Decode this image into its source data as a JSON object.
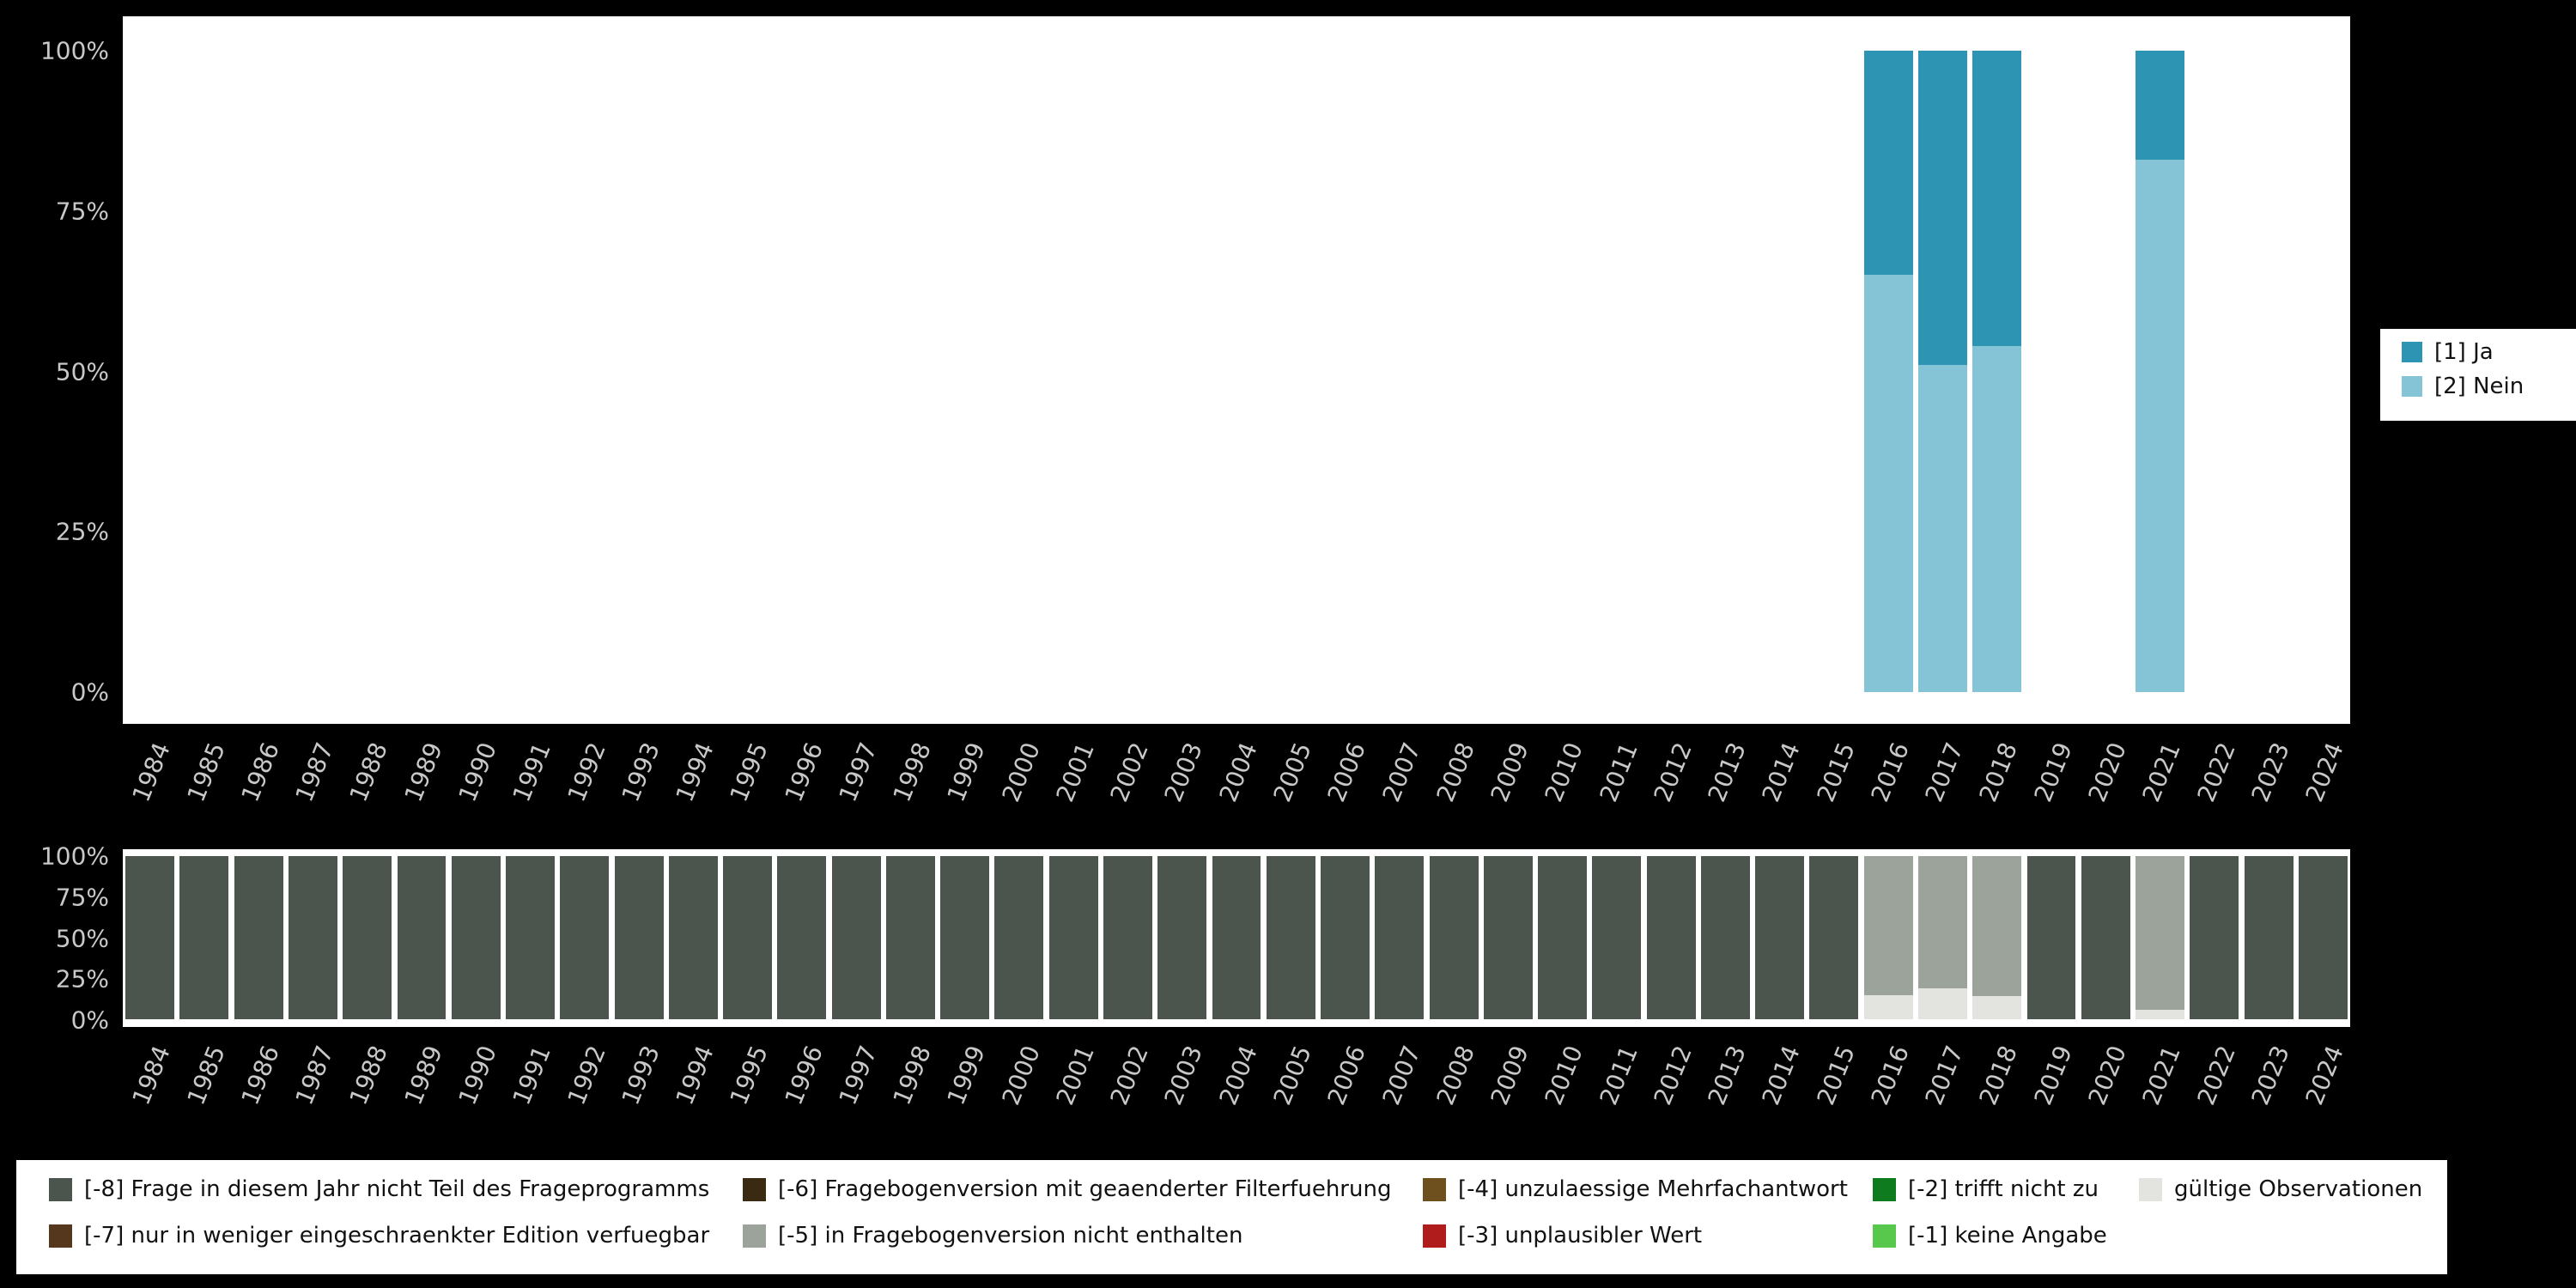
{
  "colors": {
    "background": "#000000",
    "panel": "#ffffff",
    "axis_text": "#c8c8c8",
    "legend_text": "#111111",
    "ja": "#2d94b3",
    "nein": "#85c3d6",
    "m8": "#4c544e",
    "m7": "#54371c",
    "m6": "#3b2a12",
    "m5": "#9ba39b",
    "m4": "#6e4f1e",
    "m3": "#b01c1c",
    "m2": "#0f7b1f",
    "m1": "#57c84b",
    "valid": "#e3e3e0"
  },
  "y_ticks": [
    "100%",
    "75%",
    "50%",
    "25%",
    "0%"
  ],
  "years": [
    "1984",
    "1985",
    "1986",
    "1987",
    "1988",
    "1989",
    "1990",
    "1991",
    "1992",
    "1993",
    "1994",
    "1995",
    "1996",
    "1997",
    "1998",
    "1999",
    "2000",
    "2001",
    "2002",
    "2003",
    "2004",
    "2005",
    "2006",
    "2007",
    "2008",
    "2009",
    "2010",
    "2011",
    "2012",
    "2013",
    "2014",
    "2015",
    "2016",
    "2017",
    "2018",
    "2019",
    "2020",
    "2021",
    "2022",
    "2023",
    "2024"
  ],
  "legend_top": {
    "entries": [
      {
        "label": "[1] Ja",
        "color_key": "ja"
      },
      {
        "label": "[2] Nein",
        "color_key": "nein"
      }
    ]
  },
  "legend_bottom": {
    "rows": [
      [
        {
          "label": "[-8] Frage in diesem Jahr nicht Teil des Frageprogramms",
          "color_key": "m8"
        },
        {
          "label": "[-6] Fragebogenversion mit geaenderter Filterfuehrung",
          "color_key": "m6"
        },
        {
          "label": "[-4] unzulaessige Mehrfachantwort",
          "color_key": "m4"
        },
        {
          "label": "[-2] trifft nicht zu",
          "color_key": "m2"
        },
        {
          "label": "gültige Observationen",
          "color_key": "valid"
        }
      ],
      [
        {
          "label": "[-7] nur in weniger eingeschraenkter Edition verfuegbar",
          "color_key": "m7"
        },
        {
          "label": "[-5] in Fragebogenversion nicht enthalten",
          "color_key": "m5"
        },
        {
          "label": "[-3] unplausibler Wert",
          "color_key": "m3"
        },
        {
          "label": "[-1] keine Angabe",
          "color_key": "m1"
        }
      ]
    ]
  },
  "chart_data": [
    {
      "type": "bar",
      "stacked": true,
      "stack_order": "bottom-to-top",
      "title": "",
      "xlabel": "",
      "ylabel": "",
      "ylim": [
        0,
        100
      ],
      "y_unit": "percent",
      "grid": false,
      "legend_position": "right",
      "categories": [
        "1984",
        "1985",
        "1986",
        "1987",
        "1988",
        "1989",
        "1990",
        "1991",
        "1992",
        "1993",
        "1994",
        "1995",
        "1996",
        "1997",
        "1998",
        "1999",
        "2000",
        "2001",
        "2002",
        "2003",
        "2004",
        "2005",
        "2006",
        "2007",
        "2008",
        "2009",
        "2010",
        "2011",
        "2012",
        "2013",
        "2014",
        "2015",
        "2016",
        "2017",
        "2018",
        "2019",
        "2020",
        "2021",
        "2022",
        "2023",
        "2024"
      ],
      "series": [
        {
          "name": "[2] Nein",
          "color_key": "nein",
          "values": [
            0,
            0,
            0,
            0,
            0,
            0,
            0,
            0,
            0,
            0,
            0,
            0,
            0,
            0,
            0,
            0,
            0,
            0,
            0,
            0,
            0,
            0,
            0,
            0,
            0,
            0,
            0,
            0,
            0,
            0,
            0,
            0,
            65,
            51,
            54,
            0,
            0,
            83,
            0,
            0,
            0
          ]
        },
        {
          "name": "[1] Ja",
          "color_key": "ja",
          "values": [
            0,
            0,
            0,
            0,
            0,
            0,
            0,
            0,
            0,
            0,
            0,
            0,
            0,
            0,
            0,
            0,
            0,
            0,
            0,
            0,
            0,
            0,
            0,
            0,
            0,
            0,
            0,
            0,
            0,
            0,
            0,
            0,
            35,
            49,
            46,
            0,
            0,
            17,
            0,
            0,
            0
          ]
        }
      ]
    },
    {
      "type": "bar",
      "stacked": true,
      "stack_order": "bottom-to-top",
      "title": "",
      "xlabel": "",
      "ylabel": "",
      "ylim": [
        0,
        100
      ],
      "y_unit": "percent",
      "grid": false,
      "legend_position": "bottom",
      "categories": [
        "1984",
        "1985",
        "1986",
        "1987",
        "1988",
        "1989",
        "1990",
        "1991",
        "1992",
        "1993",
        "1994",
        "1995",
        "1996",
        "1997",
        "1998",
        "1999",
        "2000",
        "2001",
        "2002",
        "2003",
        "2004",
        "2005",
        "2006",
        "2007",
        "2008",
        "2009",
        "2010",
        "2011",
        "2012",
        "2013",
        "2014",
        "2015",
        "2016",
        "2017",
        "2018",
        "2019",
        "2020",
        "2021",
        "2022",
        "2023",
        "2024"
      ],
      "series": [
        {
          "name": "gültige Observationen",
          "color_key": "valid",
          "values": [
            0,
            0,
            0,
            0,
            0,
            0,
            0,
            0,
            0,
            0,
            0,
            0,
            0,
            0,
            0,
            0,
            0,
            0,
            0,
            0,
            0,
            0,
            0,
            0,
            0,
            0,
            0,
            0,
            0,
            0,
            0,
            0,
            15,
            19,
            14,
            0,
            0,
            6,
            0,
            0,
            0
          ]
        },
        {
          "name": "[-5] in Fragebogenversion nicht enthalten",
          "color_key": "m5",
          "values": [
            0,
            0,
            0,
            0,
            0,
            0,
            0,
            0,
            0,
            0,
            0,
            0,
            0,
            0,
            0,
            0,
            0,
            0,
            0,
            0,
            0,
            0,
            0,
            0,
            0,
            0,
            0,
            0,
            0,
            0,
            0,
            0,
            85,
            81,
            86,
            0,
            0,
            94,
            0,
            0,
            0
          ]
        },
        {
          "name": "[-8] Frage in diesem Jahr nicht Teil des Frageprogramms",
          "color_key": "m8",
          "values": [
            100,
            100,
            100,
            100,
            100,
            100,
            100,
            100,
            100,
            100,
            100,
            100,
            100,
            100,
            100,
            100,
            100,
            100,
            100,
            100,
            100,
            100,
            100,
            100,
            100,
            100,
            100,
            100,
            100,
            100,
            100,
            100,
            0,
            0,
            0,
            100,
            100,
            0,
            100,
            100,
            100
          ]
        }
      ]
    }
  ]
}
